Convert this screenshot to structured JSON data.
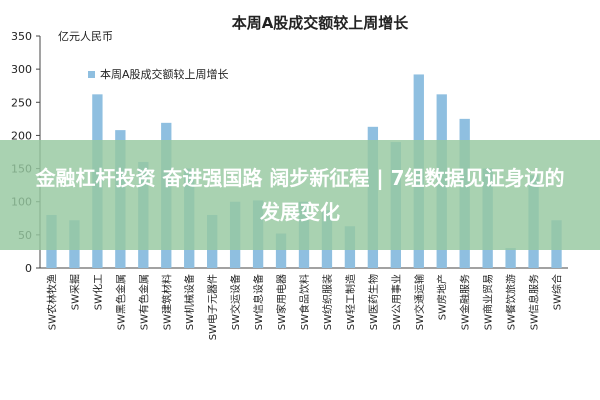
{
  "chart_data": {
    "type": "bar",
    "title": "本周A股成交额较上周增长",
    "ylabel": "亿元人民币",
    "legend": "本周A股成交额较上周增长",
    "legend_position": "top-left",
    "ylim": [
      0,
      350
    ],
    "yticks": [
      0,
      50,
      100,
      150,
      200,
      250,
      300,
      350
    ],
    "grid": false,
    "bar_color": "#8fbfe0",
    "categories": [
      "SW农林牧渔",
      "SW采掘",
      "SW化工",
      "SW黑色金属",
      "SW有色金属",
      "SW建筑材料",
      "SW机械设备",
      "SW电子元器件",
      "SW交运设备",
      "SW信息设备",
      "SW家用电器",
      "SW食品饮料",
      "SW纺织服装",
      "SW轻工制造",
      "SW医药生物",
      "SW公用事业",
      "SW交通运输",
      "SW房地产",
      "SW金融服务",
      "SW商业贸易",
      "SW餐饮旅游",
      "SW信息服务",
      "SW综合"
    ],
    "values": [
      80,
      72,
      262,
      208,
      160,
      219,
      150,
      80,
      100,
      102,
      52,
      100,
      87,
      63,
      213,
      190,
      292,
      262,
      225,
      150,
      30,
      140,
      72
    ]
  },
  "overlay": {
    "text": "金融杠杆投资 奋进强国路 阔步新征程 | 7组数据见证身边的发展变化",
    "color": "#96c8a0"
  }
}
